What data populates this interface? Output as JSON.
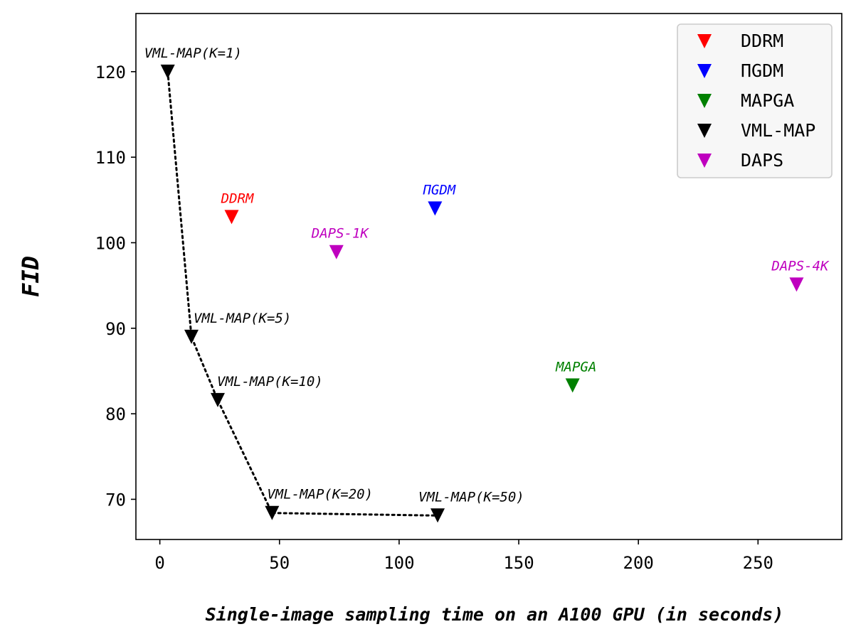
{
  "chart_data": {
    "type": "scatter",
    "title": "",
    "xlabel": "Single-image sampling time on an A100 GPU (in seconds)",
    "ylabel": "FID",
    "xlim": [
      -10,
      285
    ],
    "ylim": [
      65.3,
      126.8
    ],
    "xticks": [
      0,
      50,
      100,
      150,
      200,
      250
    ],
    "yticks": [
      70,
      80,
      90,
      100,
      110,
      120
    ],
    "grid": false,
    "legend_position": "top-right",
    "series": [
      {
        "name": "DDRM",
        "color": "#ff0000",
        "points": [
          {
            "x": 30,
            "y": 103,
            "label": "DDRM"
          }
        ]
      },
      {
        "name": "ΠGDM",
        "color": "#0000ff",
        "points": [
          {
            "x": 115,
            "y": 104,
            "label": "ΠGDM"
          }
        ]
      },
      {
        "name": "MAPGA",
        "color": "#008000",
        "points": [
          {
            "x": 172.5,
            "y": 83.3,
            "label": "MAPGA"
          }
        ]
      },
      {
        "name": "VML-MAP",
        "color": "#000000",
        "connected": true,
        "points": [
          {
            "x": 3.3,
            "y": 120.0,
            "label": "VML-MAP(K=1)"
          },
          {
            "x": 13.2,
            "y": 89.0,
            "label": "VML-MAP(K=5)"
          },
          {
            "x": 24.2,
            "y": 81.6,
            "label": "VML-MAP(K=10)"
          },
          {
            "x": 46.9,
            "y": 68.4,
            "label": "VML-MAP(K=20)"
          },
          {
            "x": 116.1,
            "y": 68.1,
            "label": "VML-MAP(K=50)"
          }
        ]
      },
      {
        "name": "DAPS",
        "color": "#bf00bf",
        "points": [
          {
            "x": 73.8,
            "y": 98.9,
            "label": "DAPS-1K"
          },
          {
            "x": 266.1,
            "y": 95.1,
            "label": "DAPS-4K"
          }
        ]
      }
    ]
  }
}
